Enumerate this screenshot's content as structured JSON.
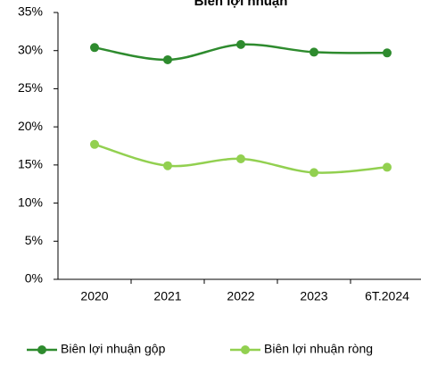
{
  "chart_data": {
    "type": "line",
    "title": "Biên lợi nhuận",
    "categories": [
      "2020",
      "2021",
      "2022",
      "2023",
      "6T.2024"
    ],
    "series": [
      {
        "name": "Biên lợi nhuận gộp",
        "color": "#2e8b2e",
        "values": [
          30.4,
          28.8,
          30.8,
          29.8,
          29.7
        ]
      },
      {
        "name": "Biên lợi nhuận ròng",
        "color": "#92d050",
        "values": [
          17.7,
          14.9,
          15.8,
          14.0,
          14.7
        ]
      }
    ],
    "ylim": [
      0,
      35
    ],
    "yticks": [
      {
        "value": 0,
        "label": "0%"
      },
      {
        "value": 5,
        "label": "5%"
      },
      {
        "value": 10,
        "label": "10%"
      },
      {
        "value": 15,
        "label": "15%"
      },
      {
        "value": 20,
        "label": "20%"
      },
      {
        "value": 25,
        "label": "25%"
      },
      {
        "value": 30,
        "label": "30%"
      },
      {
        "value": 35,
        "label": "35%"
      }
    ],
    "legend": "bottom"
  }
}
